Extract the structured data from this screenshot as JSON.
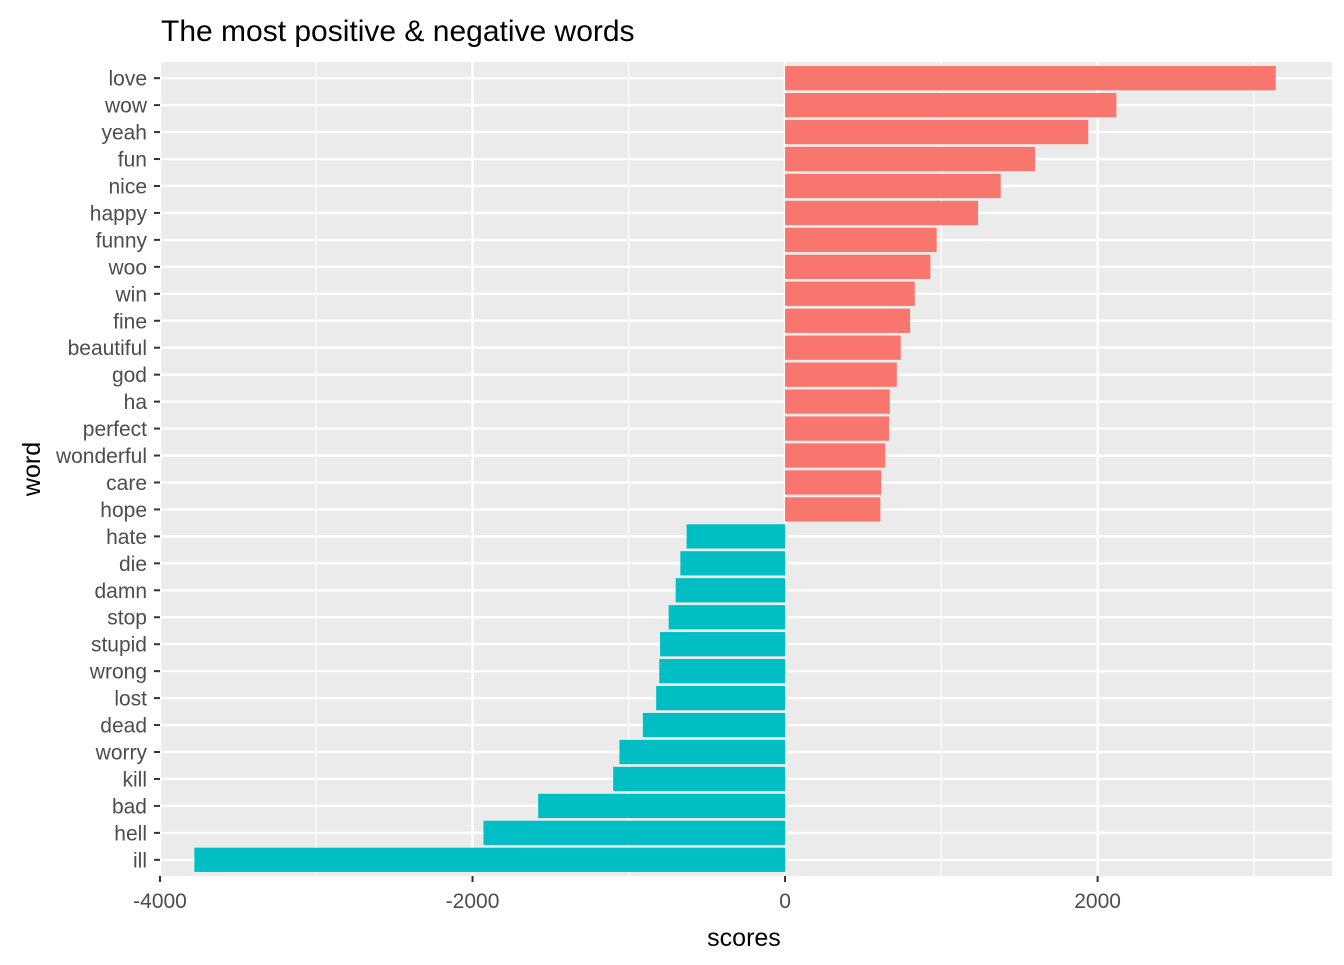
{
  "chart_data": {
    "type": "bar",
    "orientation": "horizontal",
    "title": "The most positive & negative words",
    "xlabel": "scores",
    "ylabel": "word",
    "xlim": [
      -4000,
      3500
    ],
    "x_ticks": [
      -4000,
      -2000,
      0,
      2000
    ],
    "x_tick_labels": [
      "-4000",
      "-2000",
      "0",
      "2000"
    ],
    "grid": true,
    "legend": "none",
    "colors": {
      "positive": "#F8766D",
      "negative": "#00BFC4",
      "panel": "#EBEBEB",
      "grid": "#FFFFFF"
    },
    "categories": [
      "love",
      "wow",
      "yeah",
      "fun",
      "nice",
      "happy",
      "funny",
      "woo",
      "win",
      "fine",
      "beautiful",
      "god",
      "ha",
      "perfect",
      "wonderful",
      "care",
      "hope",
      "hate",
      "die",
      "damn",
      "stop",
      "stupid",
      "wrong",
      "lost",
      "dead",
      "worry",
      "kill",
      "bad",
      "hell",
      "ill"
    ],
    "values": [
      3140,
      2120,
      1940,
      1600,
      1380,
      1235,
      970,
      930,
      830,
      800,
      740,
      715,
      670,
      665,
      640,
      615,
      610,
      -630,
      -670,
      -700,
      -745,
      -800,
      -805,
      -825,
      -910,
      -1060,
      -1100,
      -1580,
      -1930,
      -3780
    ]
  }
}
